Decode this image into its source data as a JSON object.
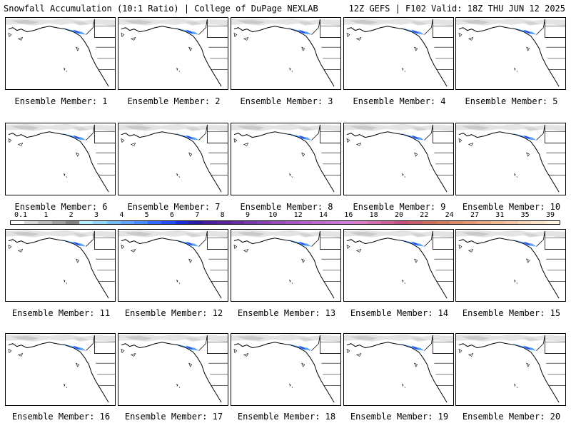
{
  "header": {
    "left": "Snowfall Accumulation (10:1 Ratio) | College of DuPage NEXLAB",
    "right": "12Z GEFS | F102 Valid: 18Z THU JUN 12 2025"
  },
  "panels": [
    {
      "label": "Ensemble Member: 1"
    },
    {
      "label": "Ensemble Member: 2"
    },
    {
      "label": "Ensemble Member: 3"
    },
    {
      "label": "Ensemble Member: 4"
    },
    {
      "label": "Ensemble Member: 5"
    },
    {
      "label": "Ensemble Member: 6"
    },
    {
      "label": "Ensemble Member: 7"
    },
    {
      "label": "Ensemble Member: 8"
    },
    {
      "label": "Ensemble Member: 9"
    },
    {
      "label": "Ensemble Member: 10"
    },
    {
      "label": "Ensemble Member: 11"
    },
    {
      "label": "Ensemble Member: 12"
    },
    {
      "label": "Ensemble Member: 13"
    },
    {
      "label": "Ensemble Member: 14"
    },
    {
      "label": "Ensemble Member: 15"
    },
    {
      "label": "Ensemble Member: 16"
    },
    {
      "label": "Ensemble Member: 17"
    },
    {
      "label": "Ensemble Member: 18"
    },
    {
      "label": "Ensemble Member: 19"
    },
    {
      "label": "Ensemble Member: 20"
    }
  ],
  "colorbar": {
    "labels": [
      "0.1",
      "1",
      "2",
      "3",
      "4",
      "5",
      "6",
      "7",
      "8",
      "9",
      "10",
      "12",
      "14",
      "16",
      "18",
      "20",
      "22",
      "24",
      "27",
      "31",
      "35",
      "39"
    ],
    "colors": [
      "#ffffff",
      "#d9d9d9",
      "#bdbdbd",
      "#a0a0a0",
      "#808080",
      "#b3f0ff",
      "#8fd8ff",
      "#6fbfff",
      "#5aa6ff",
      "#3f8cff",
      "#2a6cff",
      "#1e4ef0",
      "#1a2fd0",
      "#2a1aa8",
      "#4a1a9c",
      "#5a22a0",
      "#6a2aa8",
      "#7a34b0",
      "#8a3eb8",
      "#9a48bf",
      "#a852c6",
      "#b45ccc",
      "#c066d2",
      "#cc70d8",
      "#d87ade",
      "#e07ac8",
      "#d86ab0",
      "#d05a98",
      "#c84c80",
      "#c85a6a",
      "#d06a5a",
      "#d8785a",
      "#e08860",
      "#e89870",
      "#f0a880",
      "#f4b890",
      "#f8c8a4",
      "#fad6b6",
      "#fce4c8",
      "#fff2dc"
    ]
  }
}
